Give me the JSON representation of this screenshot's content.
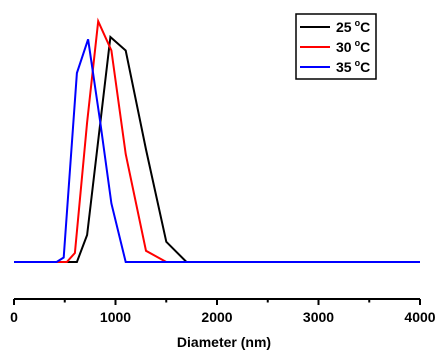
{
  "chart_data": {
    "type": "line",
    "title": "",
    "xlabel": "Diameter (nm)",
    "ylabel": "",
    "xlim": [
      0,
      4000
    ],
    "ylim": [
      0,
      100
    ],
    "x_ticks": [
      0,
      1000,
      2000,
      3000,
      4000
    ],
    "x_tick_labels": [
      "0",
      "1000",
      "2000",
      "3000",
      "4000"
    ],
    "y_axis_visible": false,
    "grid": false,
    "legend_position": "top-right",
    "series": [
      {
        "name": "25 °C",
        "label_main": "25",
        "label_deg": "o",
        "label_unit": "C",
        "color": "#000000",
        "x": [
          0,
          620,
          720,
          950,
          1100,
          1300,
          1500,
          1700,
          4000
        ],
        "y": [
          0,
          0,
          12,
          100,
          94,
          50,
          9,
          0,
          0
        ]
      },
      {
        "name": "30 °C",
        "label_main": "30",
        "label_deg": "o",
        "label_unit": "C",
        "color": "#ff0000",
        "x": [
          0,
          520,
          600,
          720,
          830,
          960,
          1100,
          1300,
          1500,
          4000
        ],
        "y": [
          0,
          0,
          4,
          62,
          107,
          94,
          48,
          5,
          0,
          0
        ]
      },
      {
        "name": "35 °C",
        "label_main": "35",
        "label_deg": "o",
        "label_unit": "C",
        "color": "#0000ff",
        "x": [
          0,
          420,
          490,
          620,
          730,
          850,
          960,
          1100,
          4000
        ],
        "y": [
          0,
          0,
          2,
          84,
          99,
          62,
          26,
          0,
          0
        ]
      }
    ]
  }
}
